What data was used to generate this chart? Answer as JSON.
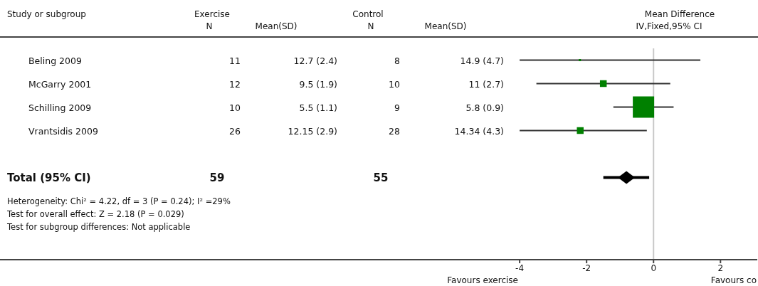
{
  "chart_data": {
    "type": "bubble",
    "title": "Mean Difference",
    "subtitle": "IV,Fixed,95% CI",
    "categories": [
      null,
      null,
      null,
      null,
      null,
      null,
      null,
      null,
      null
    ],
    "series": [
      {
        "color": "#008000",
        "marker": "square",
        "values": [
          -2.2,
          -1.5,
          -0.3,
          -2.19,
          null,
          null,
          null,
          null,
          null
        ],
        "sizes": [
          0.01,
          0.1,
          1,
          0.1,
          null,
          null,
          null,
          null,
          null
        ],
        "errors": [
          [
            -4.0,
            1.4
          ],
          [
            -3.5,
            0.5
          ],
          [
            -1.2,
            0.6
          ],
          [
            -4.0,
            -0.2
          ],
          null,
          null,
          null,
          null,
          null
        ]
      },
      {
        "type": "scatter",
        "color": "#000000",
        "marker": "diamond",
        "values": [
          null,
          null,
          null,
          null,
          null,
          -0.81,
          null,
          null,
          null
        ],
        "errors": [
          null,
          null,
          null,
          null,
          null,
          [
            -1.5,
            -0.13
          ],
          null,
          null,
          null
        ]
      }
    ],
    "orientation": "horizontal",
    "xlim": [
      -4.3,
      3.1
    ],
    "xticks": [
      -4,
      -2,
      0,
      2
    ],
    "ref_lines": [
      {
        "axis": "x",
        "value": 0,
        "color": "#c8c8c8"
      }
    ],
    "annotations": [
      "Study or subgroup",
      "Exercise",
      "N",
      "Mean(SD)",
      "Control",
      "N",
      "Mean(SD)",
      "Beling 2009",
      "11",
      "12.7 (2.4)",
      "8",
      "14.9 (4.7)",
      "McGarry 2001",
      "12",
      "9.5 (1.9)",
      "10",
      "11 (2.7)",
      "Schilling 2009",
      "10",
      "5.5 (1.1)",
      "9",
      "5.8 (0.9)",
      "Vrantsidis 2009",
      "26",
      "12.15 (2.9)",
      "28",
      "14.34 (4.3)",
      "Total (95% CI)",
      "59",
      "55",
      "Heterogeneity: Chi² = 4.22, df = 3 (P = 0.24); I² =29%",
      "Test for overall effect: Z = 2.18 (P = 0.029)",
      "Test for subgroup differences: Not applicable",
      "Favours exercise",
      "Favours co"
    ]
  }
}
